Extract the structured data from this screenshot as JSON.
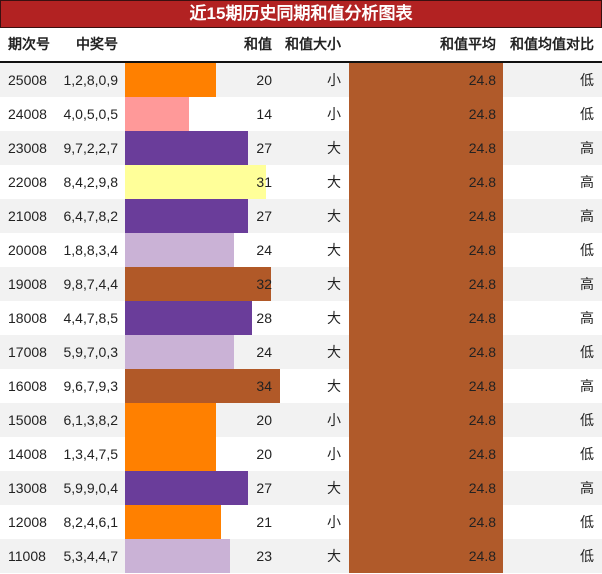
{
  "title": "近15期历史同期和值分析图表",
  "header": {
    "issue": "期次号",
    "numbers": "中奖号",
    "sum": "和值",
    "size": "和值大小",
    "avg": "和值平均",
    "compare": "和值均值对比"
  },
  "colors": {
    "title_bg": "#b22222",
    "avg_bar": "#b05a2a",
    "row_alt": "#f2f2f2"
  },
  "rows": [
    {
      "issue": "25008",
      "numbers": "1,2,8,0,9",
      "sum": "20",
      "size": "小",
      "avg": "24.8",
      "compare": "低",
      "bar_color": "#ff8000"
    },
    {
      "issue": "24008",
      "numbers": "4,0,5,0,5",
      "sum": "14",
      "size": "小",
      "avg": "24.8",
      "compare": "低",
      "bar_color": "#ff9999"
    },
    {
      "issue": "23008",
      "numbers": "9,7,2,2,7",
      "sum": "27",
      "size": "大",
      "avg": "24.8",
      "compare": "高",
      "bar_color": "#6a3d9a"
    },
    {
      "issue": "22008",
      "numbers": "8,4,2,9,8",
      "sum": "31",
      "size": "大",
      "avg": "24.8",
      "compare": "高",
      "bar_color": "#ffff99"
    },
    {
      "issue": "21008",
      "numbers": "6,4,7,8,2",
      "sum": "27",
      "size": "大",
      "avg": "24.8",
      "compare": "高",
      "bar_color": "#6a3d9a"
    },
    {
      "issue": "20008",
      "numbers": "1,8,8,3,4",
      "sum": "24",
      "size": "大",
      "avg": "24.8",
      "compare": "低",
      "bar_color": "#cab2d6"
    },
    {
      "issue": "19008",
      "numbers": "9,8,7,4,4",
      "sum": "32",
      "size": "大",
      "avg": "24.8",
      "compare": "高",
      "bar_color": "#b15928"
    },
    {
      "issue": "18008",
      "numbers": "4,4,7,8,5",
      "sum": "28",
      "size": "大",
      "avg": "24.8",
      "compare": "高",
      "bar_color": "#6a3d9a"
    },
    {
      "issue": "17008",
      "numbers": "5,9,7,0,3",
      "sum": "24",
      "size": "大",
      "avg": "24.8",
      "compare": "低",
      "bar_color": "#cab2d6"
    },
    {
      "issue": "16008",
      "numbers": "9,6,7,9,3",
      "sum": "34",
      "size": "大",
      "avg": "24.8",
      "compare": "高",
      "bar_color": "#b15928"
    },
    {
      "issue": "15008",
      "numbers": "6,1,3,8,2",
      "sum": "20",
      "size": "小",
      "avg": "24.8",
      "compare": "低",
      "bar_color": "#ff8000"
    },
    {
      "issue": "14008",
      "numbers": "1,3,4,7,5",
      "sum": "20",
      "size": "小",
      "avg": "24.8",
      "compare": "低",
      "bar_color": "#ff8000"
    },
    {
      "issue": "13008",
      "numbers": "5,9,9,0,4",
      "sum": "27",
      "size": "大",
      "avg": "24.8",
      "compare": "高",
      "bar_color": "#6a3d9a"
    },
    {
      "issue": "12008",
      "numbers": "8,2,4,6,1",
      "sum": "21",
      "size": "小",
      "avg": "24.8",
      "compare": "低",
      "bar_color": "#ff8000"
    },
    {
      "issue": "11008",
      "numbers": "5,3,4,4,7",
      "sum": "23",
      "size": "大",
      "avg": "24.8",
      "compare": "低",
      "bar_color": "#cab2d6"
    }
  ],
  "chart_data": {
    "type": "bar",
    "title": "近15期历史同期和值分析图表",
    "categories": [
      "25008",
      "24008",
      "23008",
      "22008",
      "21008",
      "20008",
      "19008",
      "18008",
      "17008",
      "16008",
      "15008",
      "14008",
      "13008",
      "12008",
      "11008"
    ],
    "series": [
      {
        "name": "和值",
        "values": [
          20,
          14,
          27,
          31,
          27,
          24,
          32,
          28,
          24,
          34,
          20,
          20,
          27,
          21,
          23
        ]
      },
      {
        "name": "和值平均",
        "values": [
          24.8,
          24.8,
          24.8,
          24.8,
          24.8,
          24.8,
          24.8,
          24.8,
          24.8,
          24.8,
          24.8,
          24.8,
          24.8,
          24.8,
          24.8
        ]
      }
    ],
    "winning_numbers": [
      "1,2,8,0,9",
      "4,0,5,0,5",
      "9,7,2,2,7",
      "8,4,2,9,8",
      "6,4,7,8,2",
      "1,8,8,3,4",
      "9,8,7,4,4",
      "4,4,7,8,5",
      "5,9,7,0,3",
      "9,6,7,9,3",
      "6,1,3,8,2",
      "1,3,4,7,5",
      "5,9,9,0,4",
      "8,2,4,6,1",
      "5,3,4,4,7"
    ],
    "size": [
      "小",
      "小",
      "大",
      "大",
      "大",
      "大",
      "大",
      "大",
      "大",
      "大",
      "小",
      "小",
      "大",
      "小",
      "大"
    ],
    "compare": [
      "低",
      "低",
      "高",
      "高",
      "高",
      "低",
      "高",
      "高",
      "低",
      "高",
      "低",
      "低",
      "高",
      "低",
      "低"
    ],
    "xlabel": "期次号",
    "ylabel": "和值",
    "orientation": "horizontal",
    "grid": false,
    "legend": "none"
  }
}
